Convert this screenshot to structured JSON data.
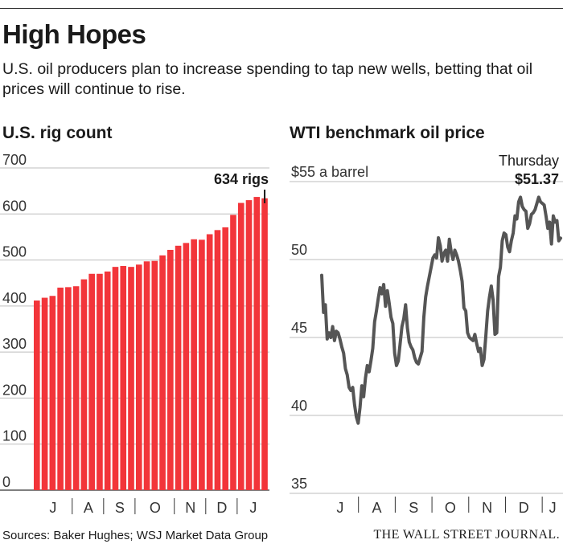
{
  "header": {
    "title": "High Hopes",
    "subtitle": "U.S. oil producers plan to increase spending to tap new wells, betting that oil prices will continue to rise."
  },
  "footer": {
    "sources": "Sources: Baker Hughes; WSJ Market Data Group",
    "publisher": "THE WALL STREET JOURNAL."
  },
  "colors": {
    "bar": "#f2353a",
    "line": "#555555",
    "grid": "#bdbdbd"
  },
  "chart_data": [
    {
      "type": "bar",
      "title": "U.S. rig count",
      "ylim": [
        0,
        700
      ],
      "yticks": [
        0,
        100,
        200,
        300,
        400,
        500,
        600,
        700
      ],
      "ytick_labels": [
        "0",
        "100",
        "200",
        "300",
        "400",
        "500",
        "600",
        "700"
      ],
      "month_labels": [
        "J",
        "A",
        "S",
        "O",
        "N",
        "D",
        "J"
      ],
      "month_start_index": [
        0,
        5,
        9,
        13,
        18,
        22,
        26
      ],
      "values": [
        412,
        418,
        422,
        440,
        441,
        443,
        458,
        470,
        470,
        475,
        485,
        487,
        485,
        490,
        497,
        498,
        510,
        522,
        531,
        537,
        545,
        544,
        556,
        565,
        571,
        598,
        624,
        630,
        637,
        634
      ],
      "annotation": {
        "label": "634 rigs",
        "index": 29
      },
      "grid": true
    },
    {
      "type": "line",
      "title": "WTI benchmark oil price",
      "ylim": [
        35,
        55
      ],
      "yticks": [
        35,
        40,
        45,
        50,
        55
      ],
      "ytick_labels": [
        "35",
        "40",
        "45",
        "50",
        "$55 a barrel"
      ],
      "month_labels": [
        "J",
        "A",
        "S",
        "O",
        "N",
        "D",
        "J"
      ],
      "values": [
        48.99,
        46.6,
        47.1,
        44.9,
        45.3,
        45.0,
        45.7,
        44.8,
        45.4,
        45.3,
        44.9,
        44.4,
        44.0,
        43.0,
        42.6,
        41.8,
        41.6,
        41.8,
        40.7,
        39.9,
        39.5,
        40.5,
        41.9,
        41.2,
        42.4,
        43.2,
        42.8,
        43.5,
        44.3,
        46.0,
        46.7,
        47.5,
        48.2,
        47.8,
        48.4,
        47.0,
        48.0,
        47.2,
        46.3,
        45.9,
        44.0,
        43.2,
        43.5,
        44.6,
        45.7,
        46.2,
        47.1,
        45.6,
        44.7,
        44.4,
        44.2,
        43.7,
        43.4,
        43.3,
        43.7,
        44.1,
        46.3,
        47.6,
        48.3,
        48.9,
        49.5,
        50.1,
        50.3,
        50.1,
        51.4,
        50.9,
        49.9,
        50.4,
        50.6,
        49.9,
        51.3,
        50.5,
        50.0,
        50.6,
        50.3,
        49.9,
        49.3,
        48.6,
        46.9,
        46.7,
        45.3,
        45.0,
        44.9,
        44.8,
        45.2,
        44.6,
        44.1,
        44.3,
        43.2,
        43.6,
        45.1,
        46.7,
        47.6,
        48.3,
        47.4,
        45.2,
        45.3,
        48.9,
        49.5,
        51.2,
        51.7,
        51.6,
        50.8,
        50.5,
        51.2,
        51.7,
        52.8,
        52.6,
        53.7,
        54.0,
        53.4,
        53.2,
        53.1,
        52.0,
        52.3,
        52.9,
        53.0,
        53.2,
        53.6,
        54.0,
        53.7,
        53.6,
        53.5,
        52.8,
        52.0,
        52.4,
        51.0,
        52.8,
        52.4,
        52.5,
        51.2,
        51.37
      ],
      "annotation": {
        "label_top": "Thursday",
        "label_value": "$51.37"
      },
      "grid": true
    }
  ]
}
